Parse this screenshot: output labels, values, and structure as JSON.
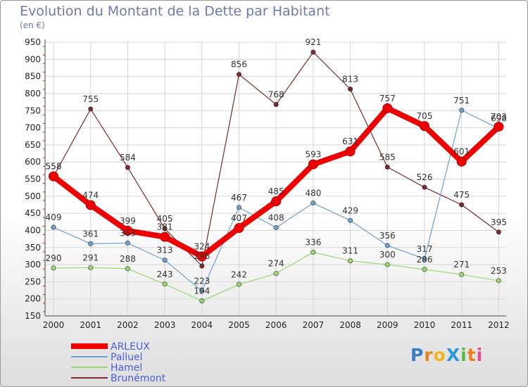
{
  "title": "Evolution du Montant de la Dette par Habitant",
  "subtitle": "(en €)",
  "logo": {
    "text": "ProXiti",
    "colors": [
      "#3a7ec8",
      "#e8821e",
      "#f2b51c",
      "#2a9ad8",
      "#5ab54a",
      "#e8821e",
      "#e84a8a"
    ]
  },
  "chart_data": {
    "type": "line",
    "x": [
      "2000",
      "2001",
      "2002",
      "2003",
      "2004",
      "2005",
      "2006",
      "2007",
      "2008",
      "2009",
      "2010",
      "2011",
      "2012"
    ],
    "ylim": [
      150,
      950
    ],
    "yticks": [
      "150",
      "200",
      "250",
      "300",
      "350",
      "400",
      "450",
      "500",
      "550",
      "600",
      "650",
      "700",
      "750",
      "800",
      "850",
      "900",
      "950"
    ],
    "grid": true,
    "legend_position": "bottom-left",
    "series": [
      {
        "name": "ARLEUX",
        "color": "#ee0000",
        "values": [
          558,
          474,
          399,
          381,
          324,
          407,
          485,
          593,
          631,
          757,
          705,
          601,
          703
        ],
        "labels": [
          "558",
          "474",
          "399",
          "381",
          "324",
          "407",
          "485",
          "593",
          "631",
          "757",
          "705",
          "601",
          "703"
        ]
      },
      {
        "name": "Palluel",
        "color": "#6fa0d0",
        "values": [
          409,
          361,
          363,
          313,
          223,
          467,
          408,
          480,
          429,
          356,
          317,
          751,
          698
        ],
        "labels": [
          "409",
          "361",
          "363",
          "313",
          "223",
          "467",
          "408",
          "480",
          "429",
          "356",
          "317",
          "751",
          "698"
        ]
      },
      {
        "name": "Hamel",
        "color": "#99d770",
        "values": [
          290,
          291,
          288,
          243,
          194,
          242,
          274,
          336,
          311,
          300,
          286,
          271,
          253
        ],
        "labels": [
          "290",
          "291",
          "288",
          "243",
          "194",
          "242",
          "274",
          "336",
          "311",
          "300",
          "286",
          "271",
          "253"
        ]
      },
      {
        "name": "Brunémont",
        "color": "#7a2a2a",
        "values": [
          558,
          755,
          584,
          405,
          296,
          856,
          768,
          921,
          813,
          585,
          526,
          475,
          395
        ],
        "labels": [
          "558",
          "755",
          "584",
          "405",
          "296",
          "856",
          "768",
          "921",
          "813",
          "585",
          "526",
          "475",
          "395"
        ]
      }
    ]
  }
}
